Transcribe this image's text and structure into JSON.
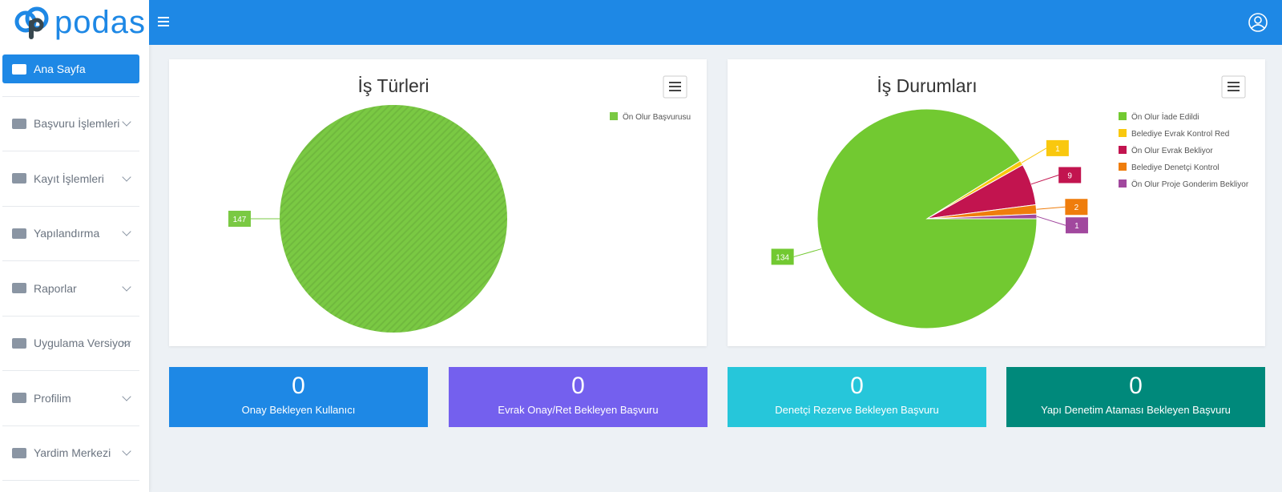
{
  "brand": "podas",
  "nav": [
    "Ana Sayfa",
    "Başvuru İşlemleri",
    "Kayıt İşlemleri",
    "Yapılandırma",
    "Raporlar",
    "Uygulama Versiyon",
    "Profilim",
    "Yardim Merkezi"
  ],
  "chart_data": [
    {
      "type": "pie",
      "title": "İş Türleri",
      "categories": [
        "Ön Olur Başvurusu"
      ],
      "values": [
        147
      ],
      "colors": [
        "#7ac943"
      ],
      "hatched": true,
      "legend": "right"
    },
    {
      "type": "pie",
      "title": "İş Durumları",
      "categories": [
        "Ön Olur İade Edildi",
        "Belediye Evrak Kontrol Red",
        "Ön Olur Evrak Bekliyor",
        "Belediye Denetçi Kontrol",
        "Ön Olur Proje Gonderim Bekliyor"
      ],
      "values": [
        134,
        1,
        9,
        2,
        1
      ],
      "colors": [
        "#72c931",
        "#f9c80e",
        "#c2144f",
        "#ef7d0c",
        "#a1489e"
      ],
      "hatched": false,
      "legend": "right"
    }
  ],
  "stats": [
    {
      "value": 0,
      "label": "Onay Bekleyen Kullanıcı",
      "color": "#1e88e5"
    },
    {
      "value": 0,
      "label": "Evrak Onay/Ret Bekleyen Başvuru",
      "color": "#7460ee"
    },
    {
      "value": 0,
      "label": "Denetçi Rezerve Bekleyen Başvuru",
      "color": "#26c6da"
    },
    {
      "value": 0,
      "label": "Yapı Denetim Ataması Bekleyen Başvuru",
      "color": "#00897b"
    }
  ]
}
